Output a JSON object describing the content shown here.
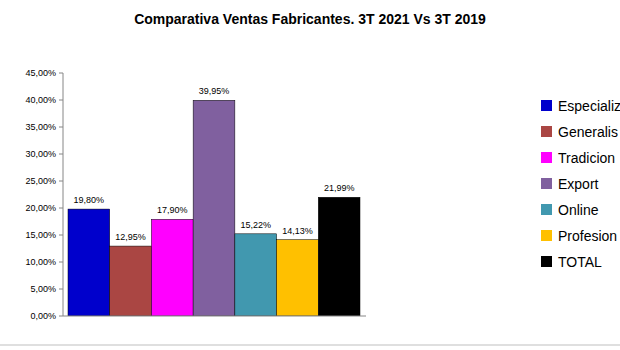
{
  "chart_data": {
    "type": "bar",
    "title": "Comparativa Ventas Fabricantes. 3T 2021 Vs 3T 2019",
    "categories": [
      "Especializ",
      "Generalis",
      "Tradicion",
      "Export",
      "Online",
      "Profesion",
      "TOTAL"
    ],
    "values": [
      19.8,
      12.95,
      17.9,
      39.95,
      15.22,
      14.13,
      21.99
    ],
    "value_labels": [
      "19,80%",
      "12,95%",
      "17,90%",
      "39,95%",
      "15,22%",
      "14,13%",
      "21,99%"
    ],
    "colors": [
      "#0000cc",
      "#aa4643",
      "#ff00ff",
      "#80609f",
      "#4198af",
      "#ffc000",
      "#000000"
    ],
    "ylim": [
      0,
      45
    ],
    "yticks": [
      {
        "value": 0,
        "label": "0,00%"
      },
      {
        "value": 5,
        "label": "5,00%"
      },
      {
        "value": 10,
        "label": "10,00%"
      },
      {
        "value": 15,
        "label": "15,00%"
      },
      {
        "value": 20,
        "label": "20,00%"
      },
      {
        "value": 25,
        "label": "25,00%"
      },
      {
        "value": 30,
        "label": "30,00%"
      },
      {
        "value": 35,
        "label": "35,00%"
      },
      {
        "value": 40,
        "label": "40,00%"
      },
      {
        "value": 45,
        "label": "45,00%"
      }
    ],
    "grid": false,
    "legend": "right",
    "data_labels": true,
    "tick_labels": "y"
  }
}
